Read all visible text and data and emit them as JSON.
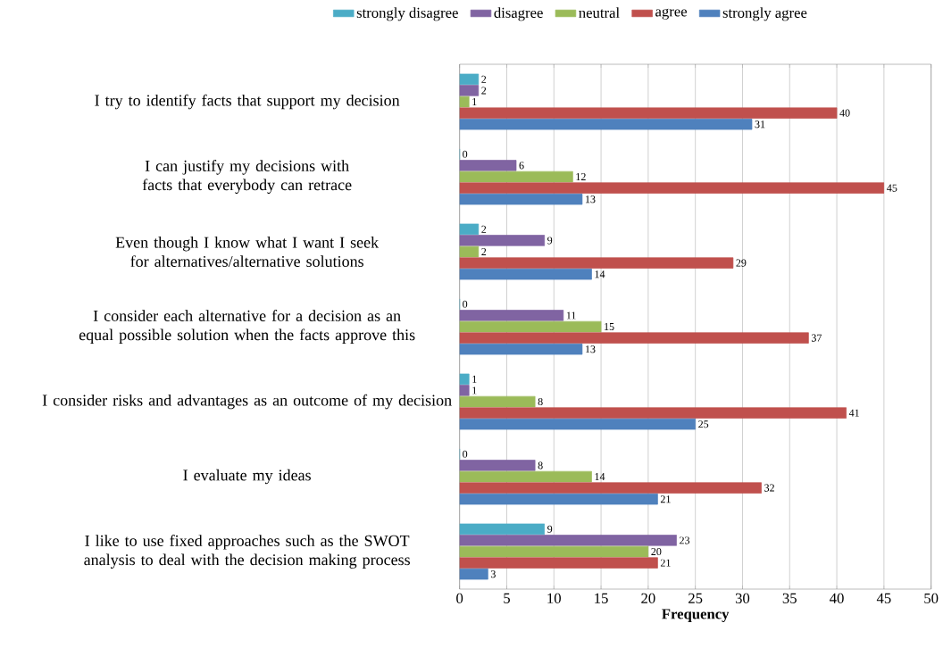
{
  "chart_data": {
    "type": "bar",
    "orientation": "horizontal",
    "xlabel": "Frequency",
    "categories": [
      "I try to identify facts that support my decision",
      "I can justify my decisions with facts that everybody can retrace",
      "Even though I know what I want I seek for alternatives/alternative solutions",
      "I consider each alternative for a decision as an equal possible solution when the facts approve this",
      "I consider risks and advantages as an outcome of my decision",
      "I evaluate my ideas",
      "I like to use fixed approaches such as the SWOT analysis to deal with the decision making process"
    ],
    "series": [
      {
        "name": "strongly disagree",
        "color": "#4bacc6",
        "values": [
          2,
          0,
          2,
          0,
          1,
          0,
          9
        ]
      },
      {
        "name": "disagree",
        "color": "#8064a2",
        "values": [
          2,
          6,
          9,
          11,
          1,
          8,
          23
        ]
      },
      {
        "name": "neutral",
        "color": "#9bbb59",
        "values": [
          1,
          12,
          2,
          15,
          8,
          14,
          20
        ]
      },
      {
        "name": "agree",
        "color": "#c0504d",
        "values": [
          40,
          45,
          29,
          37,
          41,
          32,
          21
        ]
      },
      {
        "name": "strongly agree",
        "color": "#4f81bd",
        "values": [
          31,
          13,
          14,
          13,
          25,
          21,
          3
        ]
      }
    ],
    "xlim": [
      0,
      50
    ],
    "xticks": [
      0,
      5,
      10,
      15,
      20,
      25,
      30,
      35,
      40,
      45,
      50
    ],
    "grid": "x",
    "legend": "top",
    "data_labels": true
  }
}
